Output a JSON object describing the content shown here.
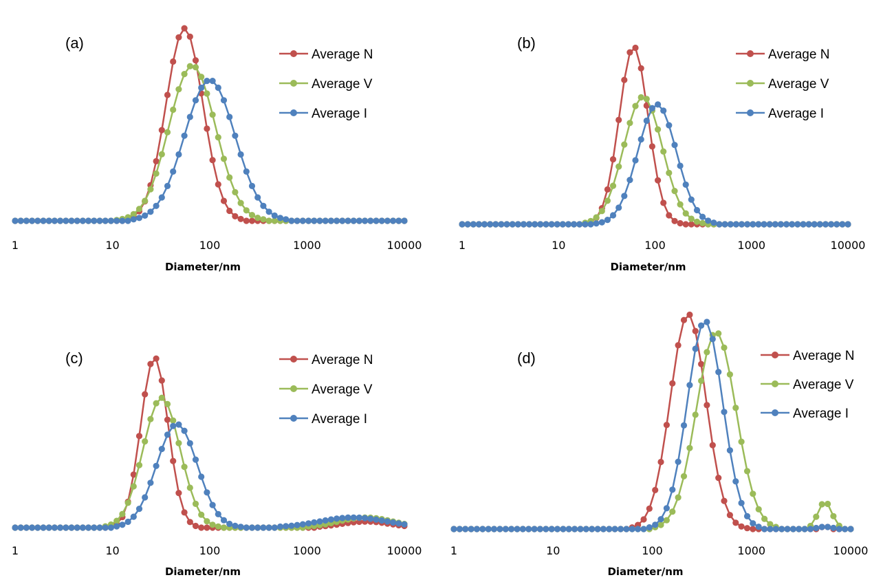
{
  "colors": {
    "N": "#c0504d",
    "V": "#9bbb59",
    "I": "#4f81bd"
  },
  "chart_data": [
    {
      "type": "line",
      "panel_label": "(a)",
      "xlabel": "Diameter/nm",
      "xscale": "log",
      "xlim": [
        1,
        10000
      ],
      "xticks": [
        "1",
        "10",
        "100",
        "1000",
        "10000"
      ],
      "ylim": [
        0,
        1
      ],
      "grid": false,
      "legend_placement": "top-right",
      "legend": [
        "Average N",
        "Average V",
        "Average I"
      ],
      "series": [
        {
          "name": "Average N",
          "color": "#c0504d",
          "peak": 0.93,
          "center": 55,
          "sigma": 0.19,
          "bump": null
        },
        {
          "name": "Average V",
          "color": "#9bbb59",
          "peak": 0.75,
          "center": 66,
          "sigma": 0.24,
          "bump": null
        },
        {
          "name": "Average I",
          "color": "#4f81bd",
          "peak": 0.68,
          "center": 100,
          "sigma": 0.26,
          "bump": null
        }
      ]
    },
    {
      "type": "line",
      "panel_label": "(b)",
      "xlabel": "Diameter/nm",
      "xscale": "log",
      "xlim": [
        1,
        10000
      ],
      "xticks": [
        "1",
        "10",
        "100",
        "1000",
        "10000"
      ],
      "ylim": [
        0,
        1
      ],
      "grid": false,
      "legend_placement": "top-right",
      "legend": [
        "Average N",
        "Average V",
        "Average I"
      ],
      "series": [
        {
          "name": "Average N",
          "color": "#c0504d",
          "peak": 0.92,
          "center": 60,
          "sigma": 0.15,
          "bump": null
        },
        {
          "name": "Average V",
          "color": "#9bbb59",
          "peak": 0.66,
          "center": 75,
          "sigma": 0.2,
          "bump": null
        },
        {
          "name": "Average I",
          "color": "#4f81bd",
          "peak": 0.62,
          "center": 105,
          "sigma": 0.2,
          "bump": null
        }
      ]
    },
    {
      "type": "line",
      "panel_label": "(c)",
      "xlabel": "Diameter/nm",
      "xscale": "log",
      "xlim": [
        1,
        10000
      ],
      "xticks": [
        "1",
        "10",
        "100",
        "1000",
        "10000"
      ],
      "ylim": [
        0,
        1
      ],
      "grid": false,
      "legend_placement": "top-right",
      "legend": [
        "Average N",
        "Average V",
        "Average I"
      ],
      "series": [
        {
          "name": "Average N",
          "color": "#c0504d",
          "peak": 0.84,
          "center": 27,
          "sigma": 0.14,
          "bump": {
            "peak": 0.03,
            "center": 4000,
            "sigma": 0.25
          }
        },
        {
          "name": "Average V",
          "color": "#9bbb59",
          "peak": 0.64,
          "center": 32,
          "sigma": 0.19,
          "bump": {
            "peak": 0.05,
            "center": 4000,
            "sigma": 0.28
          }
        },
        {
          "name": "Average I",
          "color": "#4f81bd",
          "peak": 0.51,
          "center": 46,
          "sigma": 0.21,
          "bump": {
            "peak": 0.05,
            "center": 3000,
            "sigma": 0.35
          }
        }
      ]
    },
    {
      "type": "line",
      "panel_label": "(d)",
      "xlabel": "Diameter/nm",
      "xscale": "log",
      "xlim": [
        1,
        10000
      ],
      "xticks": [
        "1",
        "10",
        "100",
        "1000",
        "10000"
      ],
      "ylim": [
        0,
        1
      ],
      "grid": false,
      "legend_placement": "top-right",
      "legend": [
        "Average N",
        "Average V",
        "Average I"
      ],
      "series": [
        {
          "name": "Average N",
          "color": "#c0504d",
          "peak": 0.95,
          "center": 230,
          "sigma": 0.18,
          "bump": {
            "peak": 0.01,
            "center": 5500,
            "sigma": 0.06
          }
        },
        {
          "name": "Average V",
          "color": "#9bbb59",
          "peak": 0.87,
          "center": 440,
          "sigma": 0.2,
          "bump": {
            "peak": 0.12,
            "center": 5500,
            "sigma": 0.07
          }
        },
        {
          "name": "Average I",
          "color": "#4f81bd",
          "peak": 0.92,
          "center": 340,
          "sigma": 0.18,
          "bump": {
            "peak": 0.01,
            "center": 5500,
            "sigma": 0.07
          }
        }
      ]
    }
  ]
}
